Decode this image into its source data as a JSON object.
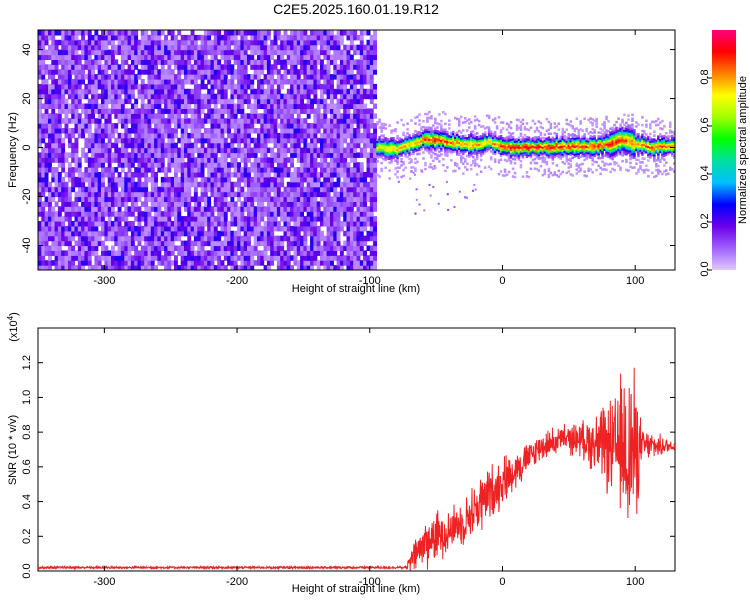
{
  "title": "C2E5.2025.160.01.19.R12",
  "colors": {
    "snr_line": "#ee2222",
    "axis": "#000000",
    "colorbar_stops": [
      "#e0c8ff",
      "#a060ff",
      "#6a00e8",
      "#0000ff",
      "#00bfff",
      "#00e0a0",
      "#00ff00",
      "#a0ff00",
      "#ffff00",
      "#ff8000",
      "#ff0000",
      "#ff007f"
    ]
  },
  "chart_data": [
    {
      "type": "heatmap",
      "name": "spectrogram",
      "xlabel": "Height of straight line (km)",
      "ylabel": "Frequency (Hz)",
      "xlim": [
        -350,
        130
      ],
      "ylim": [
        -50,
        48
      ],
      "xticks": [
        -300,
        -200,
        -100,
        0,
        100
      ],
      "xtick_labels": [
        "-300",
        "-200",
        "-100",
        "0",
        "100"
      ],
      "yticks": [
        -40,
        -20,
        0,
        20,
        40
      ],
      "ytick_labels": [
        "-40",
        "-20",
        "0",
        "20",
        "40"
      ],
      "noise_region_x": [
        -350,
        -95
      ],
      "noise_amplitude_range": [
        0.05,
        0.25
      ],
      "signal_region_x": [
        -95,
        130
      ],
      "signal_track": [
        {
          "x": -95,
          "f": 0,
          "amp": 0.7
        },
        {
          "x": -80,
          "f": -1,
          "amp": 0.8
        },
        {
          "x": -70,
          "f": 1,
          "amp": 0.75
        },
        {
          "x": -60,
          "f": 3,
          "amp": 0.85
        },
        {
          "x": -50,
          "f": 3,
          "amp": 0.9
        },
        {
          "x": -40,
          "f": 2,
          "amp": 0.85
        },
        {
          "x": -30,
          "f": 1,
          "amp": 0.8
        },
        {
          "x": -20,
          "f": 1,
          "amp": 0.8
        },
        {
          "x": -10,
          "f": 2,
          "amp": 0.75
        },
        {
          "x": 0,
          "f": 0,
          "amp": 0.9
        },
        {
          "x": 20,
          "f": 0,
          "amp": 0.92
        },
        {
          "x": 40,
          "f": 0,
          "amp": 0.9
        },
        {
          "x": 60,
          "f": 0,
          "amp": 0.85
        },
        {
          "x": 80,
          "f": 1,
          "amp": 0.9
        },
        {
          "x": 90,
          "f": 3,
          "amp": 0.85
        },
        {
          "x": 100,
          "f": 1,
          "amp": 0.8
        },
        {
          "x": 110,
          "f": 0,
          "amp": 0.85
        },
        {
          "x": 130,
          "f": 0,
          "amp": 0.8
        }
      ]
    },
    {
      "type": "colorbar",
      "name": "amplitude-colorbar",
      "label": "Normalized spectral amplitude",
      "range": [
        0.0,
        1.0
      ],
      "ticks": [
        0.0,
        0.2,
        0.4,
        0.6,
        0.8
      ],
      "tick_labels": [
        "0.0",
        "0.2",
        "0.4",
        "0.6",
        "0.8"
      ]
    },
    {
      "type": "line",
      "name": "snr",
      "xlabel": "Height of straight line (km)",
      "ylabel": "SNR (10 * v/v)",
      "y_multiplier_label": "(x10",
      "y_multiplier_exp": "4",
      "y_multiplier_close": ")",
      "xlim": [
        -350,
        130
      ],
      "ylim": [
        0,
        1.4
      ],
      "xticks": [
        -300,
        -200,
        -100,
        0,
        100
      ],
      "xtick_labels": [
        "-300",
        "-200",
        "-100",
        "0",
        "100"
      ],
      "yticks": [
        0.0,
        0.2,
        0.4,
        0.6,
        0.8,
        1.0,
        1.2
      ],
      "ytick_labels": [
        "0.0",
        "0.2",
        "0.4",
        "0.6",
        "0.8",
        "1.0",
        "1.2"
      ],
      "baseline_segment": {
        "x_start": -350,
        "x_end": -72,
        "value": 0.02
      },
      "envelope": [
        {
          "x": -72,
          "mean": 0.02,
          "spread": 0.02
        },
        {
          "x": -70,
          "mean": 0.05,
          "spread": 0.06
        },
        {
          "x": -60,
          "mean": 0.15,
          "spread": 0.15
        },
        {
          "x": -45,
          "mean": 0.22,
          "spread": 0.14
        },
        {
          "x": -30,
          "mean": 0.28,
          "spread": 0.12
        },
        {
          "x": -15,
          "mean": 0.4,
          "spread": 0.18
        },
        {
          "x": 0,
          "mean": 0.52,
          "spread": 0.14
        },
        {
          "x": 15,
          "mean": 0.62,
          "spread": 0.1
        },
        {
          "x": 30,
          "mean": 0.72,
          "spread": 0.08
        },
        {
          "x": 45,
          "mean": 0.76,
          "spread": 0.08
        },
        {
          "x": 60,
          "mean": 0.76,
          "spread": 0.1
        },
        {
          "x": 75,
          "mean": 0.72,
          "spread": 0.22
        },
        {
          "x": 85,
          "mean": 0.7,
          "spread": 0.3
        },
        {
          "x": 95,
          "mean": 0.72,
          "spread": 0.55
        },
        {
          "x": 100,
          "mean": 0.7,
          "spread": 0.45
        },
        {
          "x": 105,
          "mean": 0.72,
          "spread": 0.1
        },
        {
          "x": 130,
          "mean": 0.72,
          "spread": 0.03
        }
      ]
    }
  ]
}
